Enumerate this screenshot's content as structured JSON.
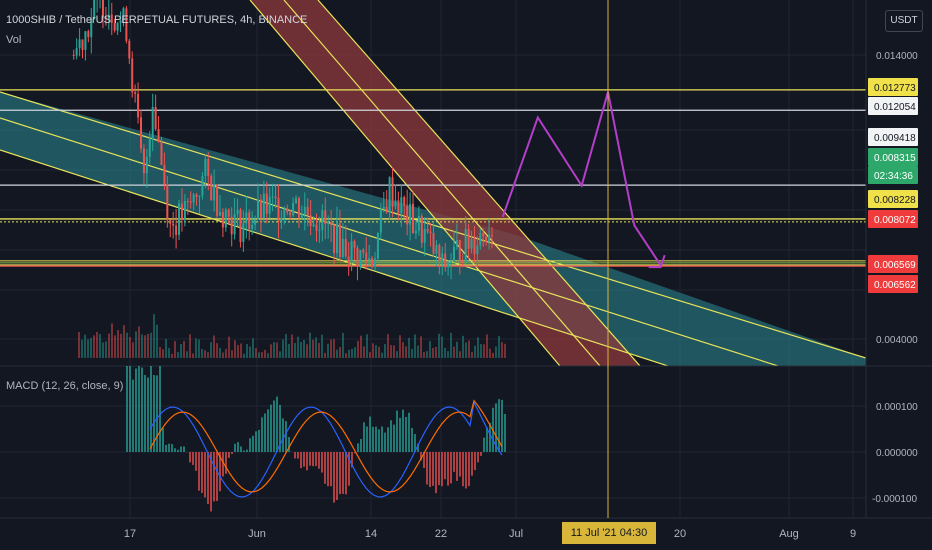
{
  "header": {
    "title": "1000SHIB / TetherUS PERPETUAL FUTURES, 4h, BINANCE",
    "volume_label": "Vol",
    "currency_button": "USDT"
  },
  "macd_label": "MACD (12, 26, close, 9)",
  "crosshair_date": "11 Jul '21  04:30",
  "colors": {
    "background": "#131722",
    "up": "#26a69a",
    "down": "#ef5350",
    "channel_fill": "#2a8a93",
    "red_channel_fill": "#8e3a3c",
    "trendline": "#e8e25a",
    "projection": "#b33fc9",
    "macd_line": "#2962ff",
    "signal_line": "#ff6d00"
  },
  "chart_data": [
    {
      "type": "line",
      "title": "1000SHIB / TetherUS PERPETUAL FUTURES, 4h, BINANCE",
      "x_ticks": [
        "17",
        "Jun",
        "14",
        "22",
        "Jul",
        "11 Jul '21  04:30",
        "20",
        "Aug",
        "9"
      ],
      "y_ticks": [
        "0.014000",
        "0.004000"
      ],
      "y_range": [
        0.003,
        0.0165
      ],
      "price_labels": [
        {
          "value": "0.012773",
          "kind": "yellow"
        },
        {
          "value": "0.012054",
          "kind": "white"
        },
        {
          "value": "0.009418",
          "kind": "white"
        },
        {
          "value": "0.008315",
          "kind": "green"
        },
        {
          "value": "02:34:36",
          "kind": "green"
        },
        {
          "value": "0.008228",
          "kind": "yellow"
        },
        {
          "value": "0.008072",
          "kind": "red"
        },
        {
          "value": "0.006569",
          "kind": "red"
        },
        {
          "value": "0.006562",
          "kind": "red"
        }
      ],
      "horizontal_levels": [
        {
          "value": 0.012773,
          "color": "yellow"
        },
        {
          "value": 0.012054,
          "color": "white"
        },
        {
          "value": 0.009418,
          "color": "white"
        },
        {
          "value": 0.008228,
          "color": "yellow"
        },
        {
          "value": 0.006569,
          "color": "red"
        }
      ],
      "projection_path": [
        {
          "date": "2021-06-29",
          "price": 0.0083
        },
        {
          "date": "2021-07-03",
          "price": 0.0118
        },
        {
          "date": "2021-07-08",
          "price": 0.0094
        },
        {
          "date": "2021-07-11",
          "price": 0.0127
        },
        {
          "date": "2021-07-14",
          "price": 0.008
        },
        {
          "date": "2021-07-17",
          "price": 0.0066
        }
      ],
      "price_series": [
        {
          "date": "2021-05-11",
          "price": 0.014
        },
        {
          "date": "2021-05-14",
          "price": 0.016
        },
        {
          "date": "2021-05-17",
          "price": 0.015
        },
        {
          "date": "2021-05-19",
          "price": 0.0095
        },
        {
          "date": "2021-05-20",
          "price": 0.0125
        },
        {
          "date": "2021-05-22",
          "price": 0.008
        },
        {
          "date": "2021-05-24",
          "price": 0.0085
        },
        {
          "date": "2021-05-26",
          "price": 0.0098
        },
        {
          "date": "2021-05-28",
          "price": 0.0085
        },
        {
          "date": "2021-05-30",
          "price": 0.008
        },
        {
          "date": "2021-06-02",
          "price": 0.0086
        },
        {
          "date": "2021-06-05",
          "price": 0.0088
        },
        {
          "date": "2021-06-08",
          "price": 0.0082
        },
        {
          "date": "2021-06-10",
          "price": 0.0075
        },
        {
          "date": "2021-06-12",
          "price": 0.007
        },
        {
          "date": "2021-06-14",
          "price": 0.0068
        },
        {
          "date": "2021-06-16",
          "price": 0.0093
        },
        {
          "date": "2021-06-18",
          "price": 0.0083
        },
        {
          "date": "2021-06-20",
          "price": 0.0077
        },
        {
          "date": "2021-06-22",
          "price": 0.0065
        },
        {
          "date": "2021-06-24",
          "price": 0.0072
        },
        {
          "date": "2021-06-26",
          "price": 0.0076
        },
        {
          "date": "2021-06-28",
          "price": 0.0081
        }
      ],
      "macd_y_ticks": [
        "0.000100",
        "0.000000",
        "-0.000100"
      ]
    }
  ]
}
